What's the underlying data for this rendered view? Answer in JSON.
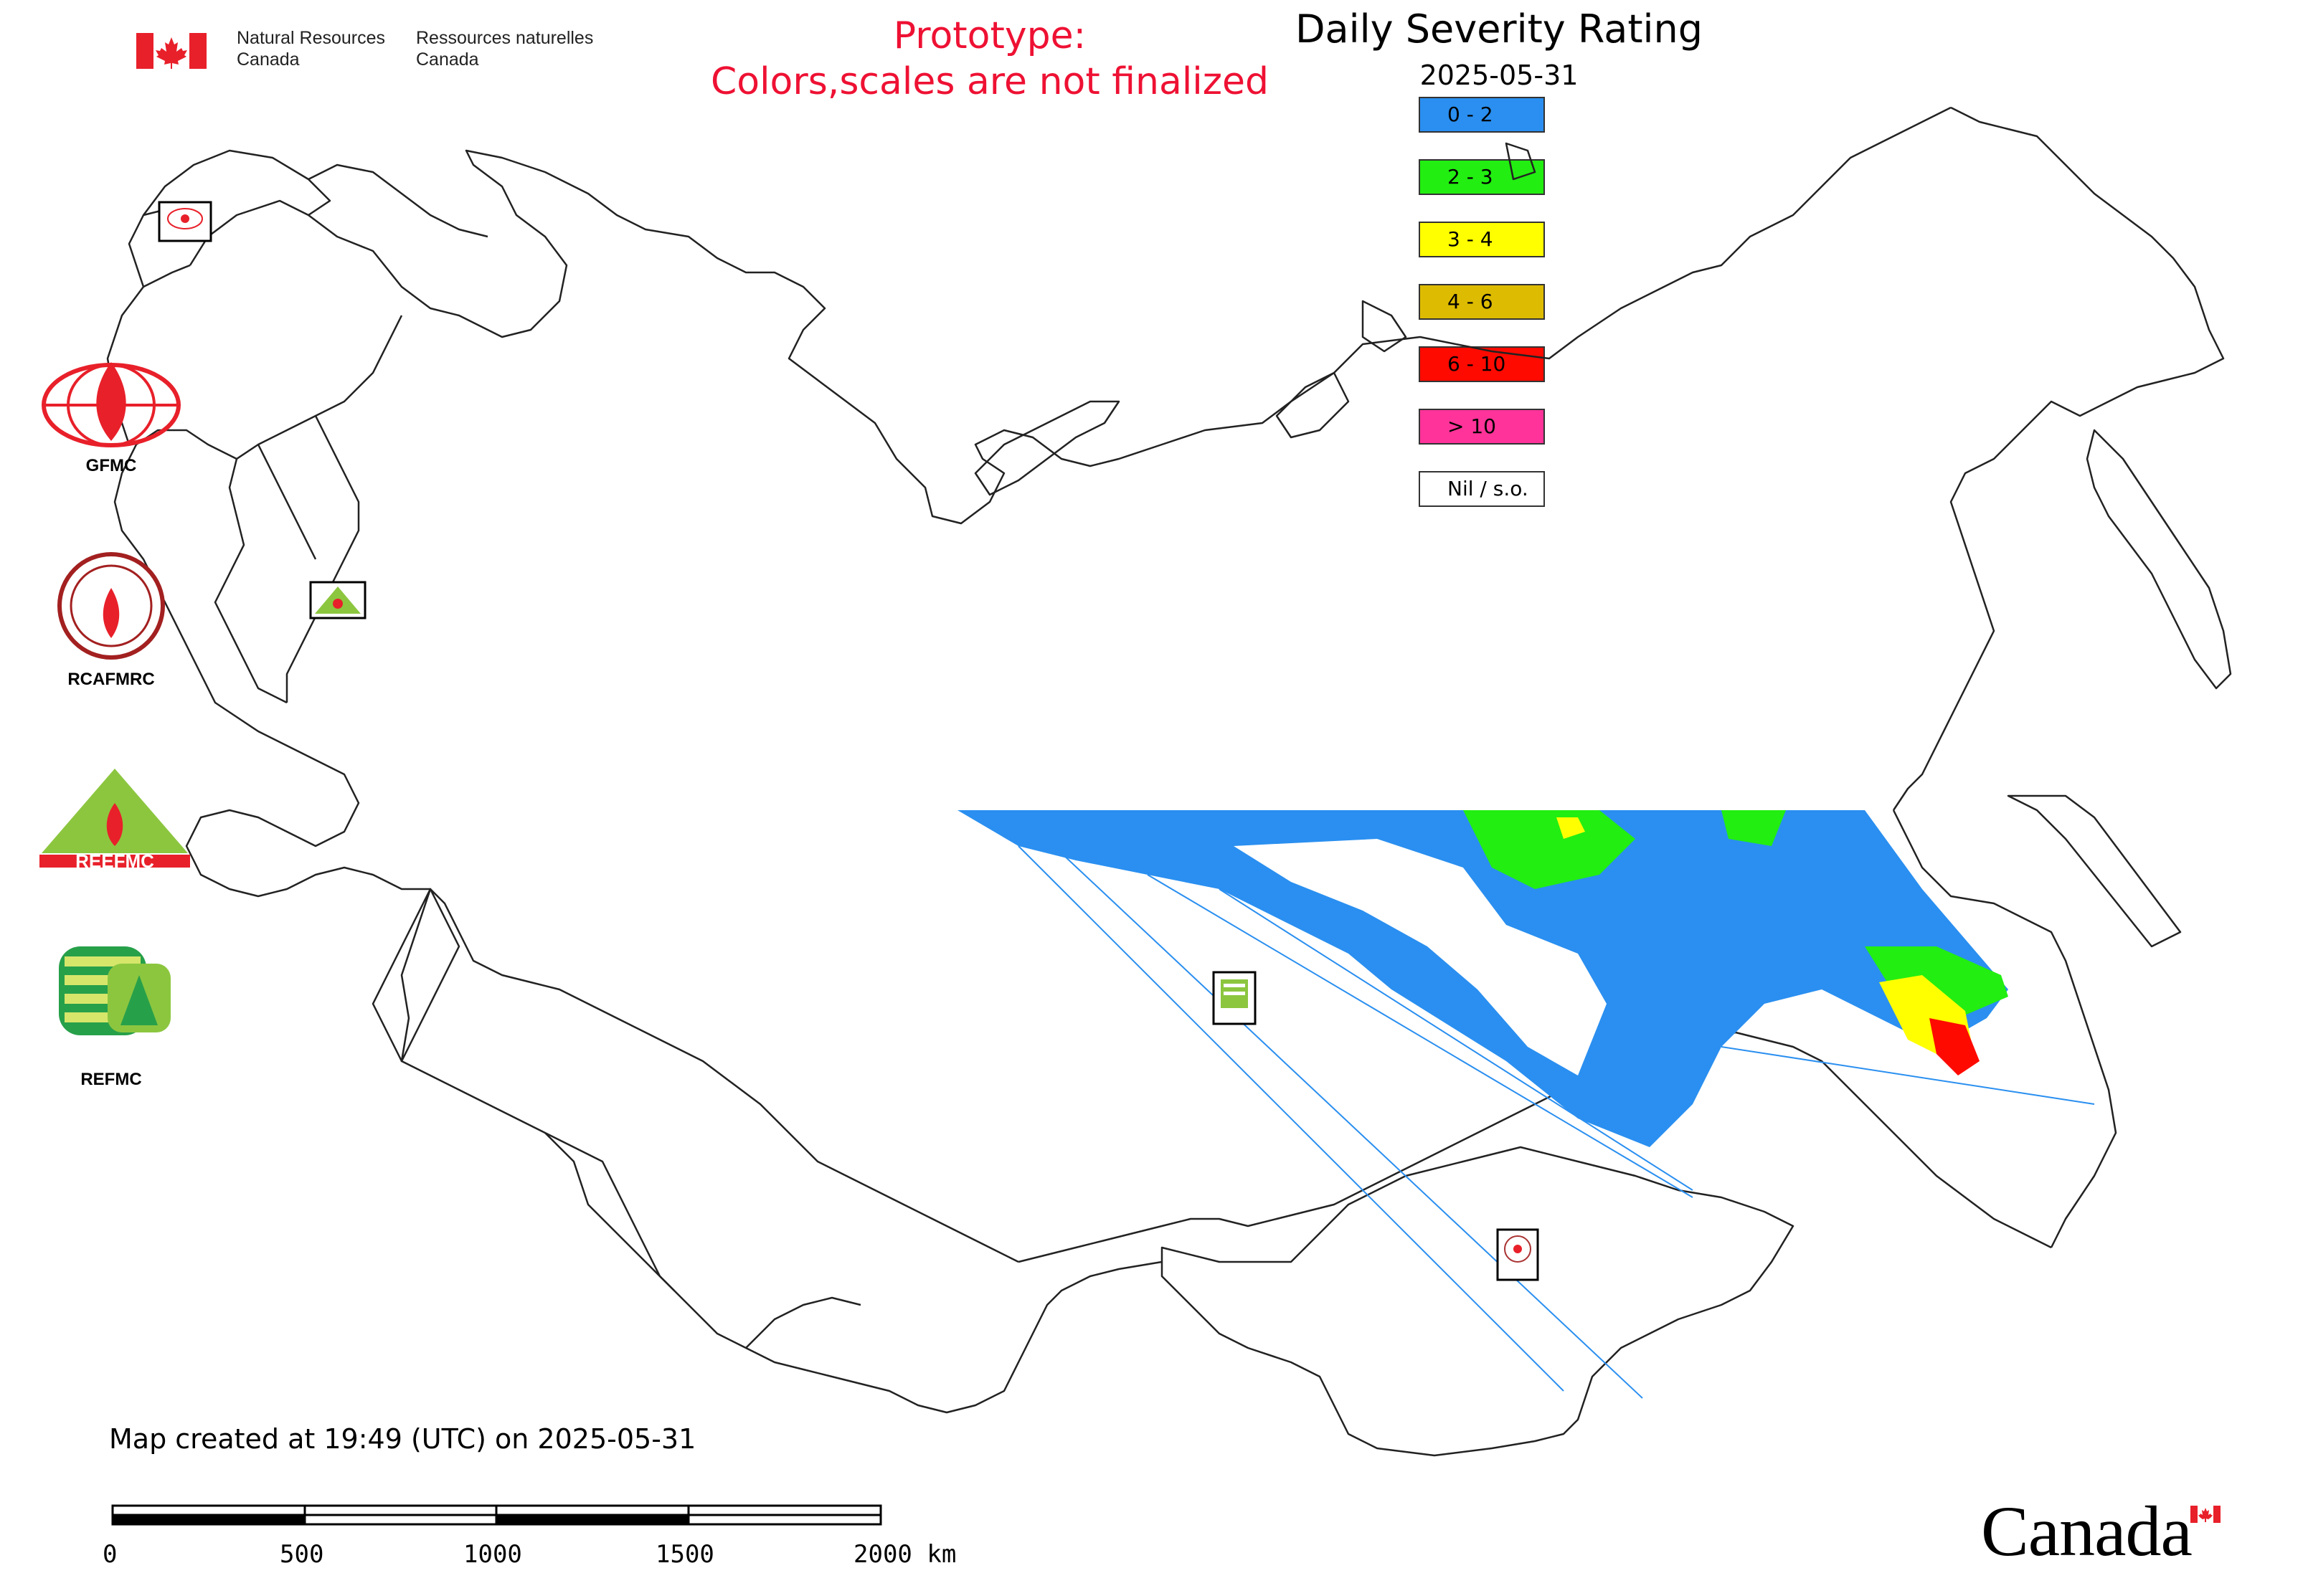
{
  "header": {
    "nrcan_en_line1": "Natural Resources",
    "nrcan_en_line2": "Canada",
    "nrcan_fr_line1": "Ressources naturelles",
    "nrcan_fr_line2": "Canada",
    "prototype_line1": "Prototype:",
    "prototype_line2": "Colors,scales are not finalized"
  },
  "title": "Daily Severity Rating",
  "date": "2025-05-31",
  "legend": [
    {
      "label": "0 - 2",
      "color": "#2a8ff0"
    },
    {
      "label": "2 - 3",
      "color": "#22ee11"
    },
    {
      "label": "3 - 4",
      "color": "#ffff00"
    },
    {
      "label": "4 - 6",
      "color": "#ddbb00"
    },
    {
      "label": "6 - 10",
      "color": "#ff0a00"
    },
    {
      "label": "> 10",
      "color": "#ff3399"
    },
    {
      "label": "Nil / s.o.",
      "color": "#ffffff"
    }
  ],
  "logos": {
    "gfmc": "GFMC",
    "rcafmrc": "RCAFMRC",
    "reefmc": "REEFMC",
    "refmc": "REFMC"
  },
  "footer": {
    "created": "Map created at 19:49 (UTC) on 2025-05-31",
    "scale_labels": [
      "0",
      "500",
      "1000",
      "1500",
      "2000 km"
    ],
    "wordmark": "Canada"
  },
  "colors": {
    "accent_red": "#ee1133",
    "coverage_blue": "#2a8ff0",
    "coverage_green": "#22ee11"
  }
}
